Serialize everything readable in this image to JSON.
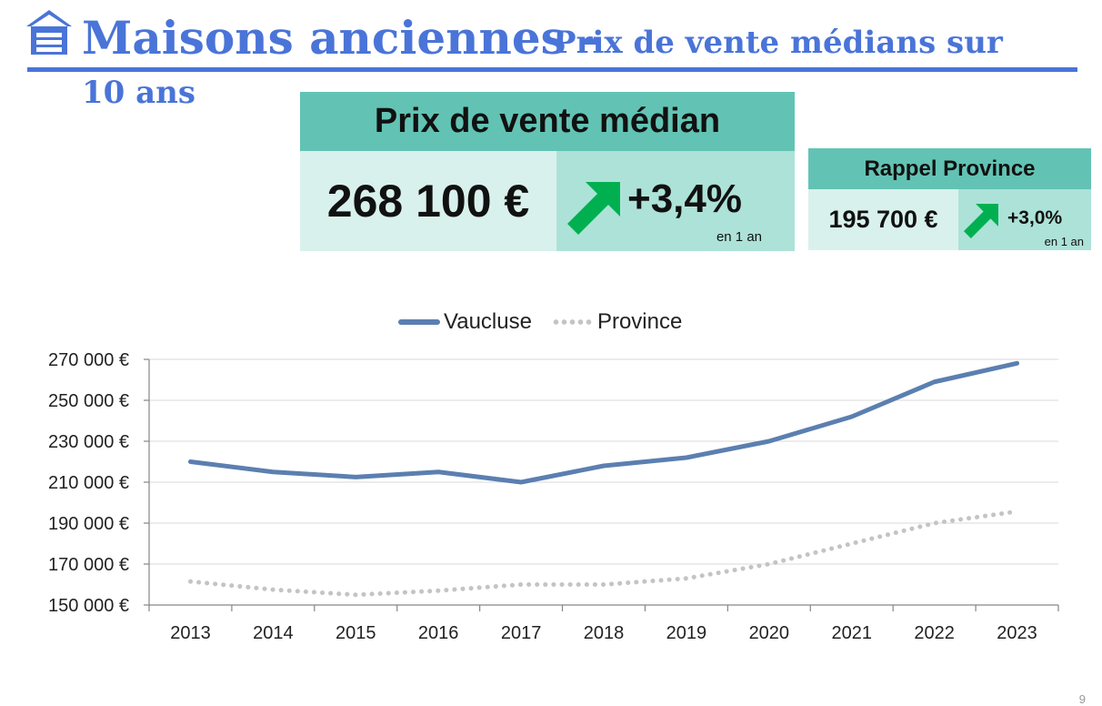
{
  "header": {
    "title_main": "Maisons anciennes -",
    "title_sub_line1": "Prix de vente médians sur",
    "title_sub_line2": "10 ans",
    "icon": "house-icon"
  },
  "kpi_main": {
    "heading": "Prix de vente médian",
    "value": "268 100 €",
    "change": "+3,4%",
    "period": "en 1 an",
    "icon": "arrow-up-right-icon"
  },
  "kpi_province": {
    "heading": "Rappel Province",
    "value": "195 700 €",
    "change": "+3,0%",
    "period": "en 1 an",
    "icon": "arrow-up-right-icon"
  },
  "colors": {
    "title": "#4a74d8",
    "teal_dark": "#62c3b4",
    "teal_light": "#d9f1ec",
    "teal_mid": "#ade2d8",
    "arrow": "#00b050",
    "vaucluse": "#5b7fb0",
    "province": "#c4c4c4"
  },
  "chart_data": {
    "type": "line",
    "x": [
      2013,
      2014,
      2015,
      2016,
      2017,
      2018,
      2019,
      2020,
      2021,
      2022,
      2023
    ],
    "series": [
      {
        "name": "Vaucluse",
        "style": "solid",
        "values": [
          220000,
          215000,
          212500,
          215000,
          210000,
          218000,
          222000,
          230000,
          242000,
          259000,
          268100
        ]
      },
      {
        "name": "Province",
        "style": "dotted",
        "values": [
          161500,
          157500,
          155000,
          157000,
          160000,
          160000,
          163000,
          170000,
          180000,
          190000,
          195700
        ]
      }
    ],
    "yticks": [
      "150 000 €",
      "170 000 €",
      "190 000 €",
      "210 000 €",
      "230 000 €",
      "250 000 €",
      "270 000 €"
    ],
    "ylim": [
      150000,
      270000
    ],
    "ystep": 20000,
    "grid": true,
    "legend": "top-center",
    "title": "",
    "xlabel": "",
    "ylabel": ""
  },
  "page_number": "9"
}
